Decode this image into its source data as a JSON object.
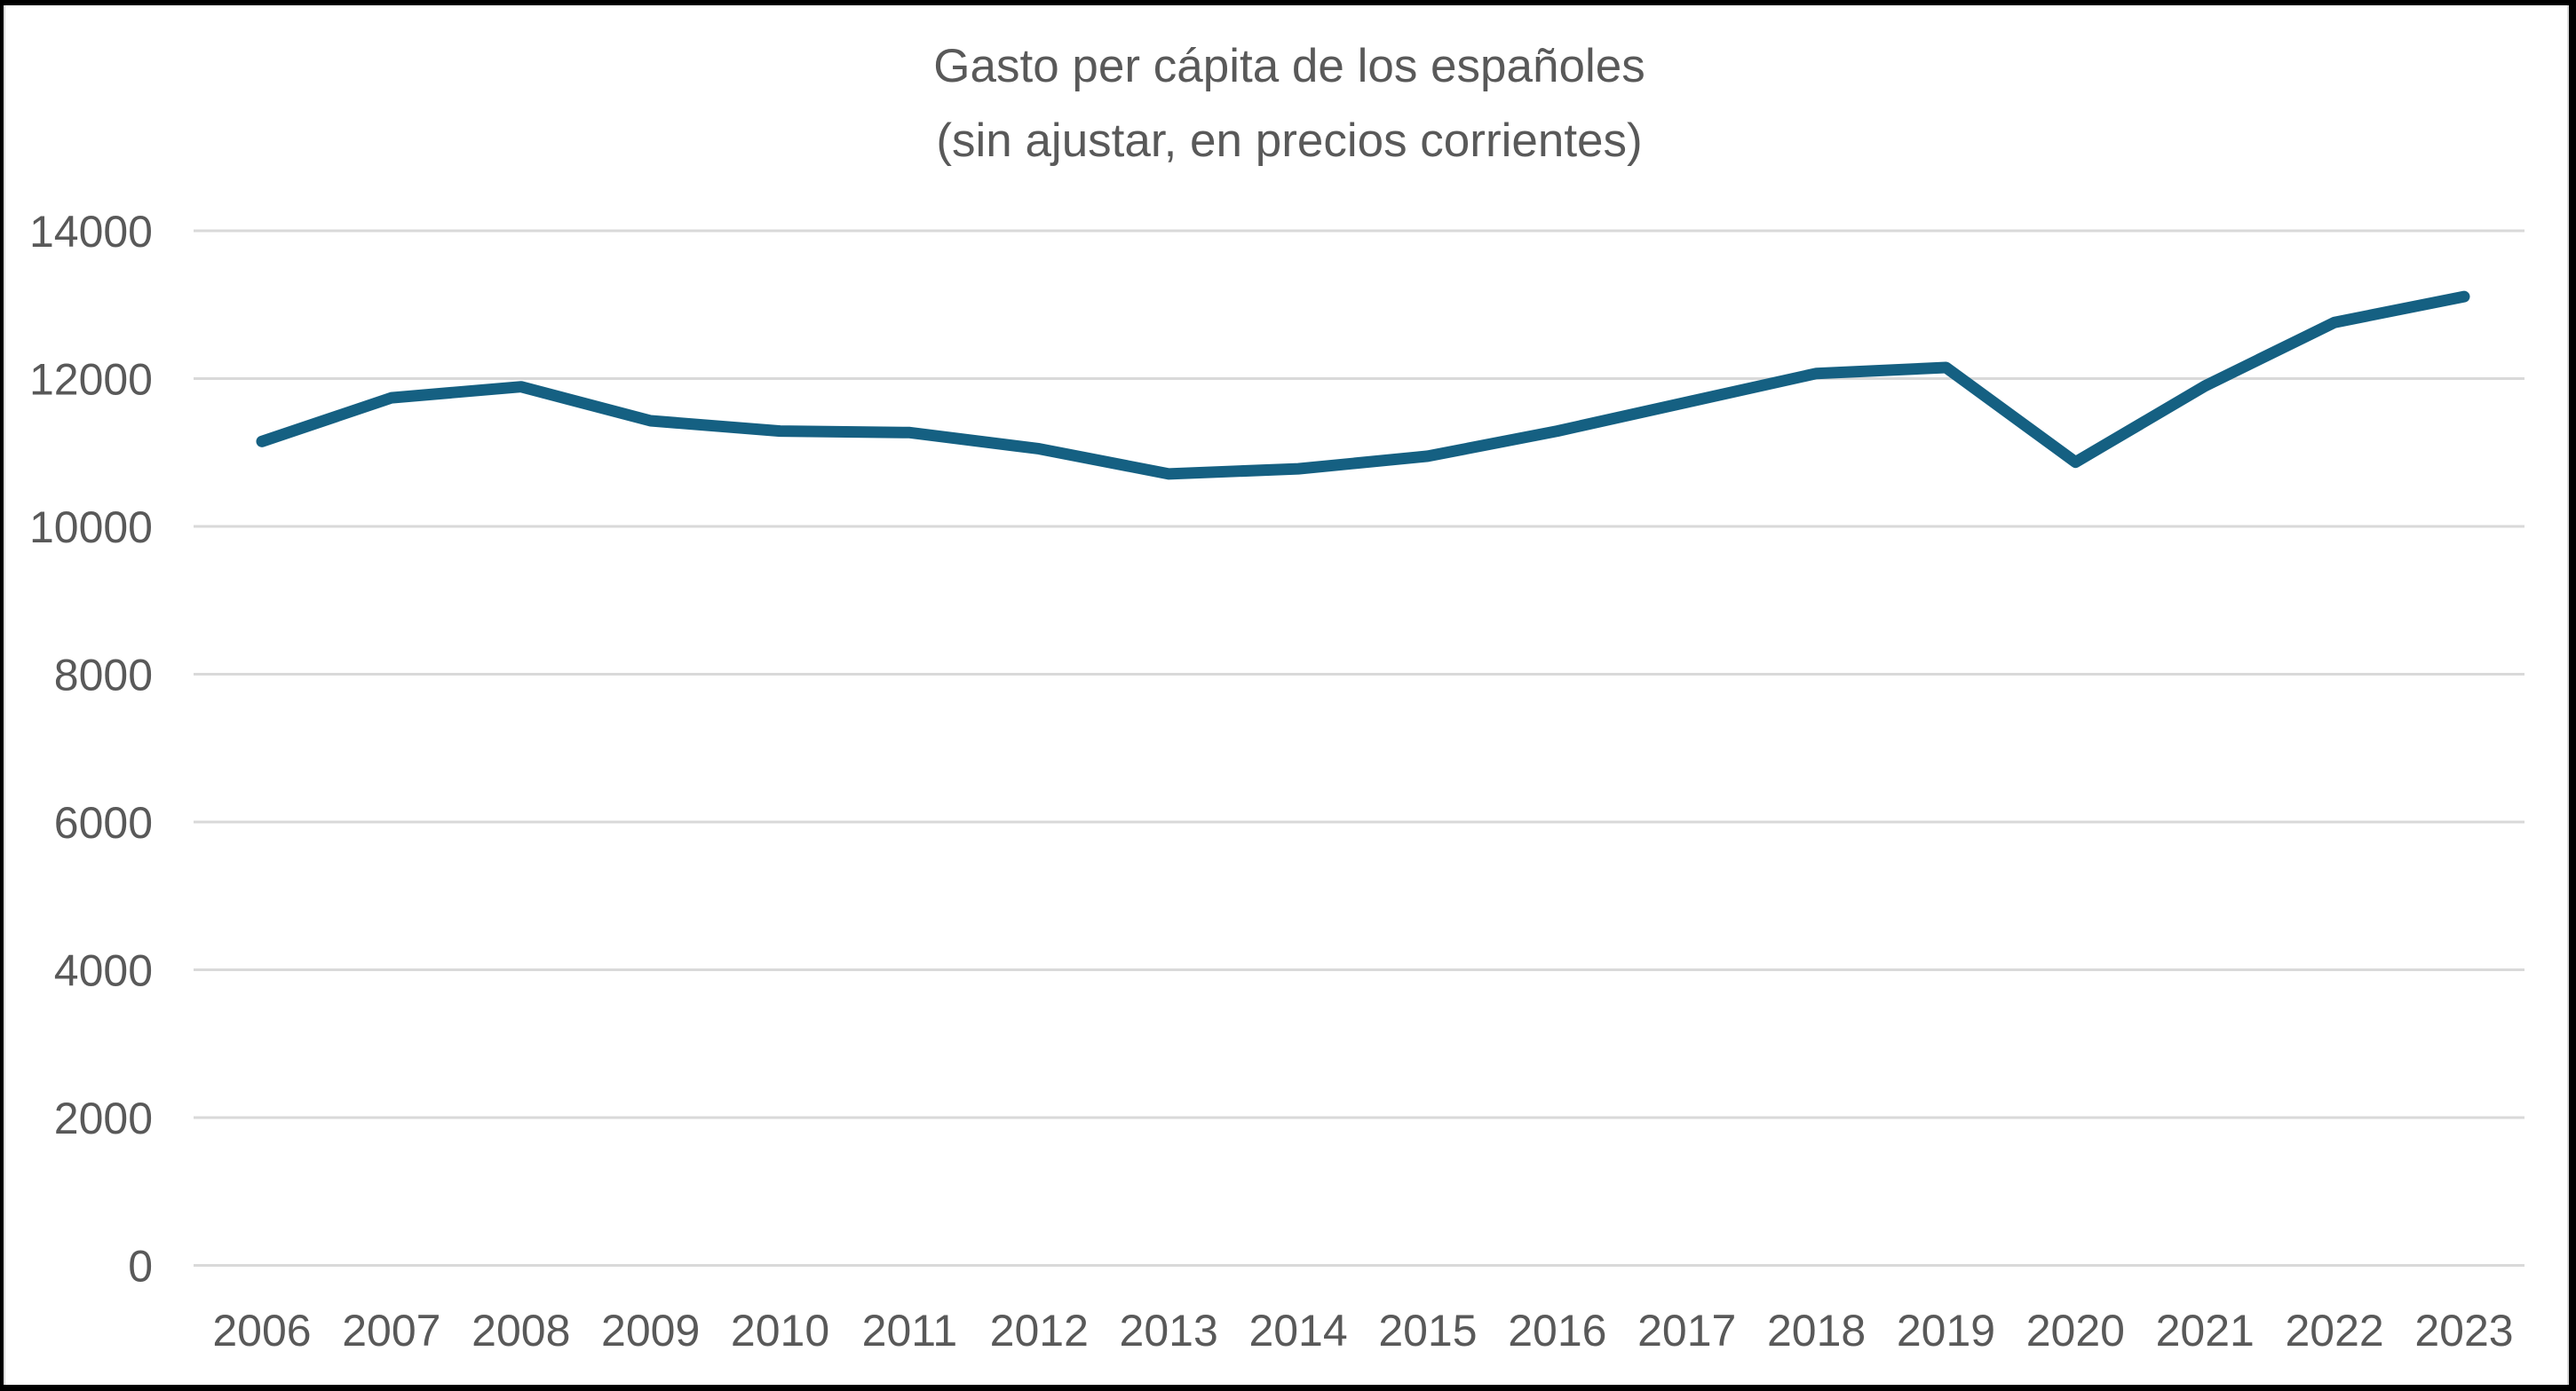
{
  "chart_data": {
    "type": "line",
    "title": "Gasto per cápita de los españoles (sin ajustar, en precios corrientes)",
    "title_lines": [
      "Gasto per cápita de los españoles",
      "(sin ajustar, en precios corrientes)"
    ],
    "categories": [
      "2006",
      "2007",
      "2008",
      "2009",
      "2010",
      "2011",
      "2012",
      "2013",
      "2014",
      "2015",
      "2016",
      "2017",
      "2018",
      "2019",
      "2020",
      "2021",
      "2022",
      "2023"
    ],
    "series": [
      {
        "name": "Gasto per cápita",
        "values": [
          11150,
          11740,
          11890,
          11430,
          11290,
          11270,
          11050,
          10710,
          10780,
          10950,
          11290,
          11680,
          12070,
          12150,
          10870,
          11900,
          12760,
          13110
        ]
      }
    ],
    "xlabel": "",
    "ylabel": "",
    "ylim": [
      0,
      14000
    ],
    "y_ticks": [
      0,
      2000,
      4000,
      6000,
      8000,
      10000,
      12000,
      14000
    ],
    "grid": true,
    "legend": "none",
    "colors": {
      "line": "#156082",
      "gridline": "#d9d9d9",
      "labels": "#595959",
      "title": "#595959",
      "background": "#ffffff",
      "frame": "#000000"
    }
  }
}
